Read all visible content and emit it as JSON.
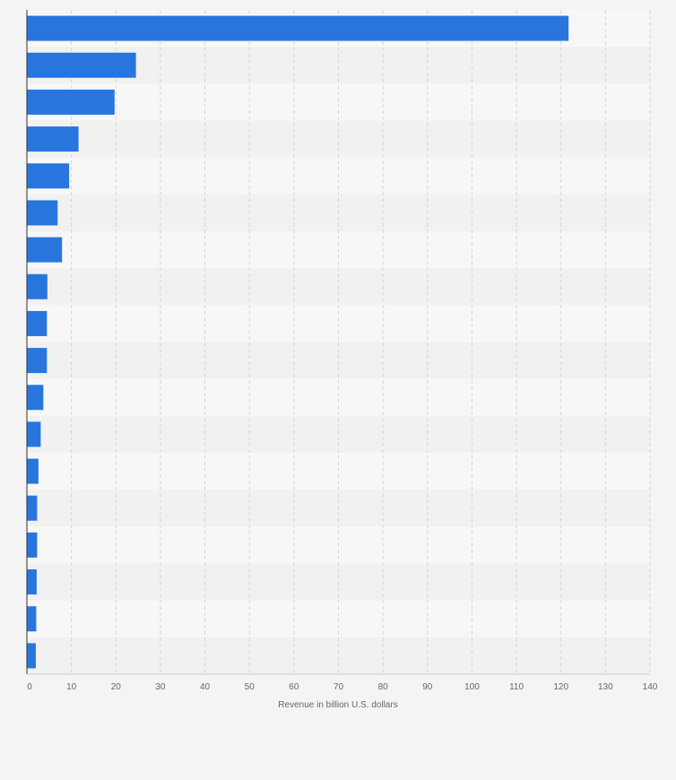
{
  "chart_data": {
    "type": "bar",
    "orientation": "horizontal",
    "categories": [
      "",
      "",
      "",
      "",
      "",
      "",
      "",
      "",
      "",
      "",
      "",
      "",
      "",
      "",
      "",
      "",
      "",
      ""
    ],
    "values": [
      121.7,
      24.5,
      19.7,
      11.6,
      9.5,
      6.9,
      7.9,
      4.6,
      4.5,
      4.5,
      3.7,
      3.1,
      2.6,
      2.3,
      2.3,
      2.2,
      2.1,
      2.0
    ],
    "xlabel": "Revenue in billion U.S. dollars",
    "ylabel": "",
    "xlim": [
      0,
      140
    ],
    "xticks": [
      "0",
      "10",
      "20",
      "30",
      "40",
      "50",
      "60",
      "70",
      "80",
      "90",
      "100",
      "110",
      "120",
      "130",
      "140"
    ],
    "grid": true,
    "legend": "none",
    "colors": {
      "bar": "#2876dd",
      "band_light": "#f7f7f7",
      "band_dark": "#f1f1f1",
      "gridline": "#d6d6d6",
      "axis": "#333333",
      "page_background": "#f4f4f4"
    }
  }
}
